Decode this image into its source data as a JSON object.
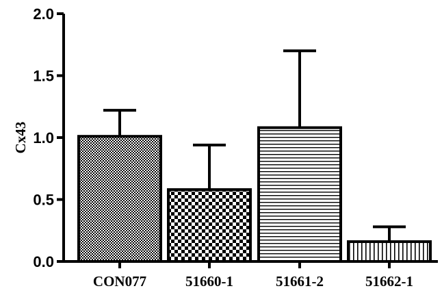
{
  "chart_data": {
    "type": "bar",
    "ylabel": "Cx43",
    "xlabel": "",
    "ylim": [
      0,
      2.0
    ],
    "yticks": [
      "0.0",
      "0.5",
      "1.0",
      "1.5",
      "2.0"
    ],
    "categories": [
      "CON077",
      "51660-1",
      "51661-2",
      "51662-1"
    ],
    "values": [
      1.01,
      0.58,
      1.08,
      0.16
    ],
    "errors": [
      0.21,
      0.36,
      0.62,
      0.12
    ],
    "patterns": [
      "fine-checker",
      "coarse-checker",
      "horizontal-lines",
      "vertical-lines"
    ],
    "grid": false,
    "legend": "none"
  },
  "colors": {
    "axis": "#000000",
    "fill": "#000000",
    "background": "#ffffff"
  }
}
